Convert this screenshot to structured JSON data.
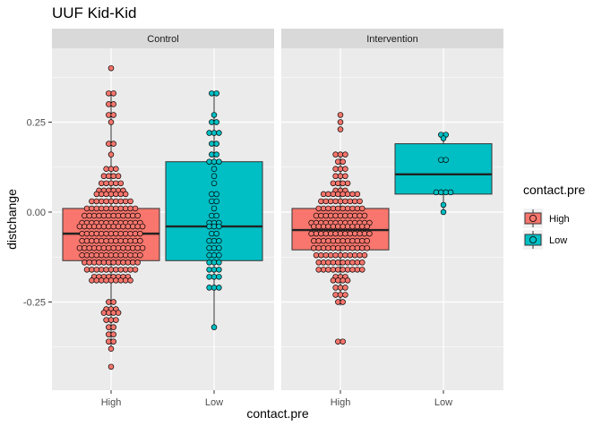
{
  "chart_data": {
    "type": "boxplot-dotplot",
    "title": "UUF Kid-Kid",
    "xlabel": "contact.pre",
    "ylabel": "distchange",
    "ylim": [
      -0.45,
      0.42
    ],
    "y_ticks": [
      0.25,
      0.0,
      -0.25
    ],
    "y_tick_labels": [
      "0.25",
      "0.00",
      "-0.25"
    ],
    "panels": [
      "Control",
      "Intervention"
    ],
    "categories": [
      "High",
      "Low"
    ],
    "colors": {
      "High": "#F8766D",
      "Low": "#00BFC4",
      "panel_bg": "#EBEBEB",
      "strip_bg": "#D9D9D9",
      "grid": "#FFFFFF"
    },
    "legend": {
      "title": "contact.pre",
      "entries": [
        "High",
        "Low"
      ],
      "position": "right"
    },
    "boxes": [
      {
        "panel": "Control",
        "group": "High",
        "q1": -0.135,
        "median": -0.06,
        "q3": 0.01,
        "whisker_low": -0.38,
        "whisker_high": 0.33
      },
      {
        "panel": "Control",
        "group": "Low",
        "q1": -0.135,
        "median": -0.04,
        "q3": 0.14,
        "whisker_low": -0.32,
        "whisker_high": 0.33
      },
      {
        "panel": "Intervention",
        "group": "High",
        "q1": -0.105,
        "median": -0.05,
        "q3": 0.01,
        "whisker_low": -0.26,
        "whisker_high": 0.16
      },
      {
        "panel": "Intervention",
        "group": "Low",
        "q1": 0.05,
        "median": 0.105,
        "q3": 0.19,
        "whisker_low": 0.0,
        "whisker_high": 0.215
      }
    ],
    "dot_stacks": [
      {
        "panel": "Control",
        "group": "High",
        "rows": [
          [
            0.4,
            1
          ],
          [
            0.33,
            2
          ],
          [
            0.3,
            2
          ],
          [
            0.27,
            2
          ],
          [
            0.25,
            1
          ],
          [
            0.19,
            2
          ],
          [
            0.16,
            1
          ],
          [
            0.12,
            3
          ],
          [
            0.1,
            4
          ],
          [
            0.08,
            5
          ],
          [
            0.06,
            6
          ],
          [
            0.05,
            7
          ],
          [
            0.03,
            9
          ],
          [
            0.01,
            11
          ],
          [
            -0.01,
            12
          ],
          [
            -0.03,
            13
          ],
          [
            -0.04,
            14
          ],
          [
            -0.06,
            13
          ],
          [
            -0.08,
            13
          ],
          [
            -0.1,
            14
          ],
          [
            -0.12,
            13
          ],
          [
            -0.14,
            12
          ],
          [
            -0.16,
            11
          ],
          [
            -0.18,
            8
          ],
          [
            -0.19,
            9
          ],
          [
            -0.25,
            2
          ],
          [
            -0.27,
            3
          ],
          [
            -0.28,
            4
          ],
          [
            -0.3,
            3
          ],
          [
            -0.32,
            2
          ],
          [
            -0.34,
            2
          ],
          [
            -0.36,
            2
          ],
          [
            -0.38,
            1
          ],
          [
            -0.43,
            1
          ]
        ]
      },
      {
        "panel": "Control",
        "group": "Low",
        "rows": [
          [
            0.33,
            2
          ],
          [
            0.27,
            1
          ],
          [
            0.25,
            2
          ],
          [
            0.22,
            3
          ],
          [
            0.19,
            2
          ],
          [
            0.16,
            2
          ],
          [
            0.14,
            3
          ],
          [
            0.12,
            1
          ],
          [
            0.1,
            1
          ],
          [
            0.08,
            1
          ],
          [
            0.05,
            2
          ],
          [
            0.03,
            2
          ],
          [
            0.01,
            1
          ],
          [
            -0.01,
            2
          ],
          [
            -0.03,
            3
          ],
          [
            -0.04,
            3
          ],
          [
            -0.06,
            2
          ],
          [
            -0.08,
            3
          ],
          [
            -0.1,
            3
          ],
          [
            -0.12,
            3
          ],
          [
            -0.14,
            3
          ],
          [
            -0.16,
            3
          ],
          [
            -0.18,
            3
          ],
          [
            -0.21,
            3
          ],
          [
            -0.32,
            1
          ]
        ]
      },
      {
        "panel": "Intervention",
        "group": "High",
        "rows": [
          [
            0.27,
            1
          ],
          [
            0.25,
            1
          ],
          [
            0.23,
            1
          ],
          [
            0.16,
            3
          ],
          [
            0.14,
            2
          ],
          [
            0.12,
            3
          ],
          [
            0.1,
            3
          ],
          [
            0.08,
            4
          ],
          [
            0.06,
            3
          ],
          [
            0.05,
            8
          ],
          [
            0.03,
            9
          ],
          [
            0.01,
            10
          ],
          [
            -0.01,
            11
          ],
          [
            -0.03,
            13
          ],
          [
            -0.04,
            12
          ],
          [
            -0.06,
            13
          ],
          [
            -0.08,
            12
          ],
          [
            -0.1,
            12
          ],
          [
            -0.12,
            11
          ],
          [
            -0.14,
            10
          ],
          [
            -0.16,
            10
          ],
          [
            -0.18,
            3
          ],
          [
            -0.19,
            4
          ],
          [
            -0.21,
            3
          ],
          [
            -0.23,
            3
          ],
          [
            -0.25,
            2
          ],
          [
            -0.36,
            2
          ]
        ]
      },
      {
        "panel": "Intervention",
        "group": "Low",
        "rows": [
          [
            0.215,
            2
          ],
          [
            0.205,
            1
          ],
          [
            0.145,
            2
          ],
          [
            0.055,
            4
          ],
          [
            0.02,
            1
          ],
          [
            0.0,
            1
          ]
        ]
      }
    ]
  }
}
